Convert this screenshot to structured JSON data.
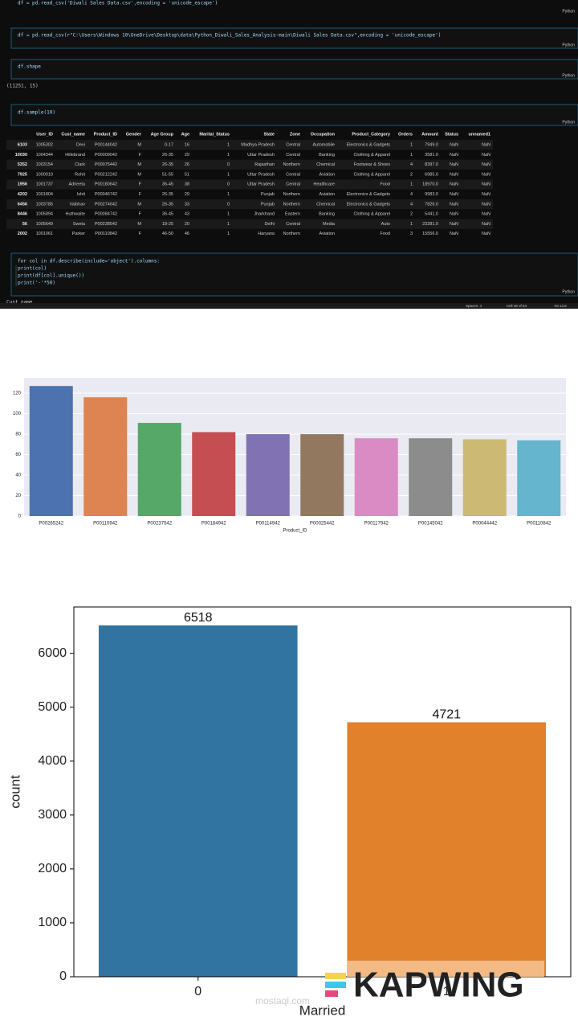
{
  "notebook": {
    "cells": [
      {
        "code": [
          "df = pd.read_csv('Diwali Sales Data.csv',encoding = 'unicode_escape')"
        ],
        "kernel": "Python"
      },
      {
        "code": [
          "df = pd.read_csv(r\"C:\\Users\\Windows 10\\OneDrive\\Desktop\\data\\Python_Diwali_Sales_Analysis-main\\Diwali Sales Data.csv\",encoding = 'unicode_escape')"
        ],
        "kernel": "Python"
      },
      {
        "code": [
          "df.shape"
        ],
        "kernel": "Python",
        "output": "(11251, 15)"
      },
      {
        "code": [
          "df.sample(10)"
        ],
        "kernel": "Python"
      },
      {
        "code": [
          "for col in df.describe(include='object').columns:",
          "    print(col)",
          "    print(df[col].unique())",
          "    print('-'*50)"
        ],
        "kernel": "Python",
        "output": "Cust_name"
      }
    ],
    "table": {
      "columns": [
        "",
        "User_ID",
        "Cust_name",
        "Product_ID",
        "Gender",
        "Age Group",
        "Age",
        "Marital_Status",
        "State",
        "Zone",
        "Occupation",
        "Product_Category",
        "Orders",
        "Amount",
        "Status",
        "unnamed1"
      ],
      "rows": [
        [
          "6103",
          "1005302",
          "Devi",
          "P00144042",
          "M",
          "0-17",
          "16",
          "1",
          "Madhya Pradesh",
          "Central",
          "Automobile",
          "Electronics & Gadgets",
          "1",
          "7949.0",
          "NaN",
          "NaN"
        ],
        [
          "10030",
          "1004344",
          "Hillebrand",
          "P00009042",
          "F",
          "26-35",
          "29",
          "1",
          "Uttar Pradesh",
          "Central",
          "Banking",
          "Clothing & Apparel",
          "1",
          "3581.0",
          "NaN",
          "NaN"
        ],
        [
          "5352",
          "1003154",
          "Clark",
          "P00075442",
          "M",
          "26-35",
          "26",
          "0",
          "Rajasthan",
          "Northern",
          "Chemical",
          "Footwear & Shoes",
          "4",
          "8397.0",
          "NaN",
          "NaN"
        ],
        [
          "7925",
          "1000019",
          "Rohit",
          "P00212242",
          "M",
          "51-55",
          "51",
          "1",
          "Uttar Pradesh",
          "Central",
          "Aviation",
          "Clothing & Apparel",
          "2",
          "6985.0",
          "NaN",
          "NaN"
        ],
        [
          "1956",
          "1001737",
          "Adheeta",
          "P00180642",
          "F",
          "36-45",
          "38",
          "0",
          "Uttar Pradesh",
          "Central",
          "Healthcare",
          "Food",
          "1",
          "18970.0",
          "NaN",
          "NaN"
        ],
        [
          "4202",
          "1001804",
          "Ishit",
          "P00046742",
          "F",
          "26-35",
          "29",
          "1",
          "Punjab",
          "Northern",
          "Aviation",
          "Electronics & Gadgets",
          "4",
          "9983.0",
          "NaN",
          "NaN"
        ],
        [
          "6456",
          "1003785",
          "Vaibhav",
          "P00274642",
          "M",
          "26-35",
          "33",
          "0",
          "Punjab",
          "Northern",
          "Chemical",
          "Electronics & Gadgets",
          "4",
          "7826.0",
          "NaN",
          "NaN"
        ],
        [
          "8446",
          "1005894",
          "Huthwaite",
          "P00084742",
          "F",
          "36-45",
          "43",
          "1",
          "Jharkhand",
          "Eastern",
          "Banking",
          "Clothing & Apparel",
          "2",
          "5441.0",
          "NaN",
          "NaN"
        ],
        [
          "56",
          "1005649",
          "Sweta",
          "P00238542",
          "M",
          "18-25",
          "20",
          "1",
          "Delhi",
          "Central",
          "Media",
          "Auto",
          "1",
          "23281.0",
          "NaN",
          "NaN"
        ],
        [
          "2002",
          "1001061",
          "Parker",
          "P00110842",
          "F",
          "46-50",
          "46",
          "1",
          "Haryana",
          "Northern",
          "Aviation",
          "Food",
          "3",
          "15556.0",
          "NaN",
          "NaN"
        ]
      ]
    },
    "status_bar": [
      "Spaces: 4",
      "Cell 48 of 64",
      "Go Live"
    ]
  },
  "chart_data": [
    {
      "type": "bar",
      "xlabel": "Product_ID",
      "categories": [
        "P00265242",
        "P00110942",
        "P00237542",
        "P00184942",
        "P00114942",
        "P00025442",
        "P00117942",
        "P00145042",
        "P00044442",
        "P00110842"
      ],
      "values": [
        127,
        116,
        91,
        82,
        80,
        80,
        76,
        76,
        75,
        74
      ],
      "colors": [
        "#4c72b0",
        "#dd8452",
        "#55a868",
        "#c44e52",
        "#8172b3",
        "#937860",
        "#da8bc3",
        "#8c8c8c",
        "#ccb974",
        "#64b5cd"
      ],
      "ylim": [
        0,
        135
      ],
      "yticks": [
        0,
        20,
        40,
        60,
        80,
        100,
        120
      ],
      "grid": true
    },
    {
      "type": "bar",
      "xlabel": "Married",
      "ylabel": "count",
      "categories": [
        "0",
        "1"
      ],
      "values": [
        6518,
        4721
      ],
      "colors": [
        "#3274a1",
        "#e1812c"
      ],
      "ylim": [
        0,
        6860
      ],
      "yticks": [
        0,
        1000,
        2000,
        3000,
        4000,
        5000,
        6000
      ],
      "grid": false,
      "data_labels": true
    }
  ],
  "watermark": {
    "brand": "KAPWING",
    "site": "mostaql.com"
  }
}
